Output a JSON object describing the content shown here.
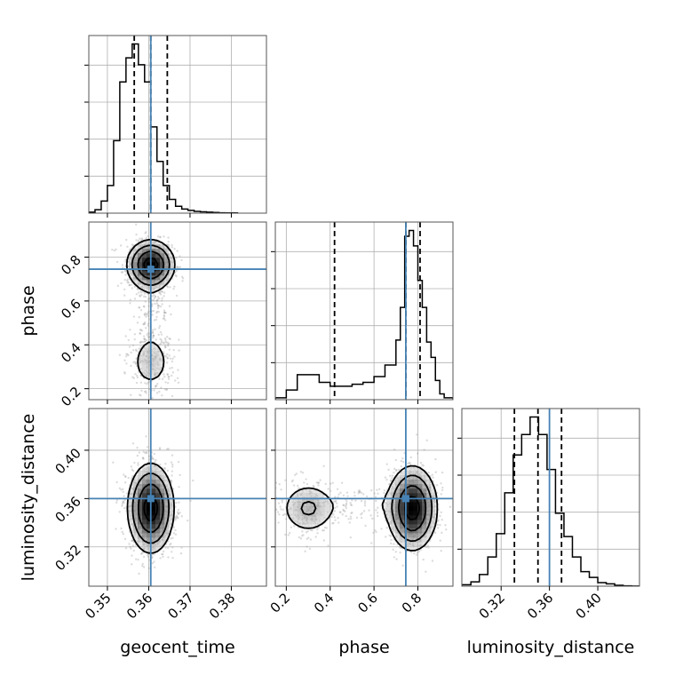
{
  "chart_data": {
    "type": "corner",
    "parameters": [
      "geocent_time",
      "phase",
      "luminosity_distance"
    ],
    "axis_labels": {
      "x": [
        "geocent_time",
        "phase",
        "luminosity_distance"
      ],
      "y": [
        "",
        "phase",
        "luminosity_distance"
      ]
    },
    "truths": {
      "geocent_time": 0.3605,
      "phase": 0.745,
      "luminosity_distance": 0.36
    },
    "truth_color": "#4682b4",
    "ranges": {
      "geocent_time": [
        0.3455,
        0.3885
      ],
      "phase": [
        0.15,
        0.96
      ],
      "luminosity_distance": [
        0.2875,
        0.4345
      ]
    },
    "ticks": {
      "geocent_time": {
        "values": [
          0.35,
          0.36,
          0.37,
          0.38
        ],
        "labels": [
          "0.35",
          "0.36",
          "0.37",
          "0.38"
        ]
      },
      "phase": {
        "values": [
          0.2,
          0.4,
          0.6,
          0.8
        ],
        "labels": [
          "0.2",
          "0.4",
          "0.6",
          "0.8"
        ]
      },
      "luminosity_distance": {
        "values": [
          0.32,
          0.36,
          0.4
        ],
        "labels": [
          "0.32",
          "0.36",
          "0.40"
        ]
      }
    },
    "grid": true,
    "histograms": {
      "geocent_time": {
        "edges": [
          0.3455,
          0.347,
          0.3485,
          0.35,
          0.3515,
          0.353,
          0.3545,
          0.356,
          0.3575,
          0.359,
          0.3605,
          0.362,
          0.3635,
          0.365,
          0.3665,
          0.368,
          0.3695,
          0.371,
          0.3725,
          0.374,
          0.3755,
          0.377,
          0.3785,
          0.38,
          0.3815
        ],
        "counts": [
          0.3,
          1,
          3.5,
          8,
          21,
          38,
          45,
          49,
          43,
          38,
          25,
          15,
          8,
          4,
          2,
          1.2,
          0.8,
          0.5,
          0.4,
          0.3,
          0.2,
          0.1,
          0.05,
          0.05
        ],
        "quantiles": [
          0.3565,
          0.3605,
          0.3645
        ]
      },
      "phase": {
        "edges": [
          0.15,
          0.2,
          0.25,
          0.3,
          0.35,
          0.4,
          0.45,
          0.5,
          0.55,
          0.6,
          0.65,
          0.7,
          0.72,
          0.74,
          0.76,
          0.78,
          0.8,
          0.82,
          0.84,
          0.86,
          0.88,
          0.9,
          0.92,
          0.96
        ],
        "counts": [
          1,
          5,
          13,
          13,
          9,
          7,
          7,
          8,
          9,
          12,
          18,
          31,
          48,
          85,
          88,
          80,
          62,
          48,
          30,
          22,
          10,
          3,
          1
        ],
        "quantiles": [
          0.42,
          0.745,
          0.81
        ]
      },
      "luminosity_distance": {
        "edges": [
          0.2875,
          0.295,
          0.302,
          0.309,
          0.316,
          0.323,
          0.33,
          0.337,
          0.344,
          0.351,
          0.358,
          0.365,
          0.372,
          0.379,
          0.386,
          0.393,
          0.4,
          0.407,
          0.414,
          0.421,
          0.428,
          0.4345
        ],
        "counts": [
          0.5,
          1.5,
          4,
          10,
          18,
          32,
          45,
          52,
          58,
          52,
          40,
          25,
          17,
          10,
          5,
          3,
          1.2,
          0.8,
          0.3,
          0.1,
          0.05
        ],
        "quantiles": [
          0.331,
          0.3505,
          0.37
        ]
      }
    },
    "pairs": [
      {
        "x": "geocent_time",
        "y": "phase"
      },
      {
        "x": "geocent_time",
        "y": "luminosity_distance"
      },
      {
        "x": "phase",
        "y": "luminosity_distance"
      }
    ],
    "contour_levels_sigma": [
      0.5,
      1.0,
      1.5,
      2.0
    ]
  }
}
